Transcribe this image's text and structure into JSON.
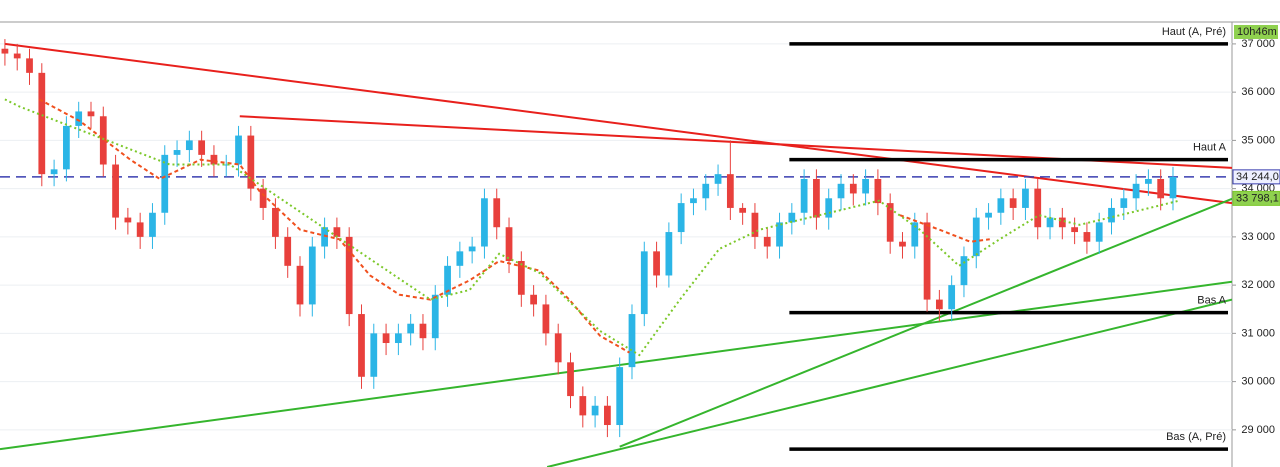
{
  "chart_data": {
    "type": "candlestick",
    "xlim": [
      -0.4,
      99.8
    ],
    "ylim": [
      28230,
      37910
    ],
    "yticks": [
      {
        "value": 29000,
        "label": "29 000"
      },
      {
        "value": 30000,
        "label": "30 000"
      },
      {
        "value": 31000,
        "label": "31 000"
      },
      {
        "value": 32000,
        "label": "32 000"
      },
      {
        "value": 33000,
        "label": "33 000"
      },
      {
        "value": 34000,
        "label": "34 000"
      },
      {
        "value": 35000,
        "label": "35 000"
      },
      {
        "value": 36000,
        "label": "36 000"
      },
      {
        "value": 37000,
        "label": "37 000"
      }
    ],
    "grid": true,
    "up_color": "#2bb5e6",
    "down_color": "#e8403c",
    "candles": [
      [
        36900,
        37100,
        36550,
        36800
      ],
      [
        36800,
        37000,
        36450,
        36700
      ],
      [
        36700,
        36900,
        36150,
        36400
      ],
      [
        36400,
        36600,
        34050,
        34300
      ],
      [
        34300,
        34600,
        34050,
        34400
      ],
      [
        34400,
        35500,
        34150,
        35300
      ],
      [
        35300,
        35800,
        35050,
        35600
      ],
      [
        35600,
        35800,
        35250,
        35500
      ],
      [
        35500,
        35700,
        34250,
        34500
      ],
      [
        34500,
        34700,
        33150,
        33400
      ],
      [
        33400,
        33600,
        33050,
        33300
      ],
      [
        33300,
        33500,
        32750,
        33000
      ],
      [
        33000,
        33700,
        32750,
        33500
      ],
      [
        33500,
        34900,
        33250,
        34700
      ],
      [
        34700,
        35000,
        34450,
        34800
      ],
      [
        34800,
        35200,
        34550,
        35000
      ],
      [
        35000,
        35200,
        34450,
        34700
      ],
      [
        34700,
        34900,
        34250,
        34500
      ],
      [
        34500,
        34700,
        34250,
        34500
      ],
      [
        34500,
        35300,
        34250,
        35100
      ],
      [
        35100,
        35300,
        33750,
        34000
      ],
      [
        34000,
        34200,
        33350,
        33600
      ],
      [
        33600,
        33800,
        32750,
        33000
      ],
      [
        33000,
        33200,
        32150,
        32400
      ],
      [
        32400,
        32600,
        31350,
        31600
      ],
      [
        31600,
        33000,
        31350,
        32800
      ],
      [
        32800,
        33400,
        32550,
        33200
      ],
      [
        33200,
        33400,
        32750,
        33000
      ],
      [
        33000,
        33200,
        31150,
        31400
      ],
      [
        31400,
        31600,
        29850,
        30100
      ],
      [
        30100,
        31200,
        29850,
        31000
      ],
      [
        31000,
        31200,
        30550,
        30800
      ],
      [
        30800,
        31200,
        30550,
        31000
      ],
      [
        31000,
        31400,
        30750,
        31200
      ],
      [
        31200,
        31400,
        30650,
        30900
      ],
      [
        30900,
        32000,
        30650,
        31800
      ],
      [
        31800,
        32600,
        31550,
        32400
      ],
      [
        32400,
        32900,
        32150,
        32700
      ],
      [
        32700,
        33000,
        32450,
        32800
      ],
      [
        32800,
        34000,
        32550,
        33800
      ],
      [
        33800,
        34000,
        32950,
        33200
      ],
      [
        33200,
        33400,
        32250,
        32500
      ],
      [
        32500,
        32700,
        31550,
        31800
      ],
      [
        31800,
        32000,
        31350,
        31600
      ],
      [
        31600,
        31800,
        30750,
        31000
      ],
      [
        31000,
        31200,
        30150,
        30400
      ],
      [
        30400,
        30600,
        29450,
        29700
      ],
      [
        29700,
        29900,
        29050,
        29300
      ],
      [
        29300,
        29700,
        29050,
        29500
      ],
      [
        29500,
        29700,
        28850,
        29100
      ],
      [
        29100,
        30500,
        28850,
        30300
      ],
      [
        30300,
        31600,
        30050,
        31400
      ],
      [
        31400,
        32900,
        31150,
        32700
      ],
      [
        32700,
        32900,
        31950,
        32200
      ],
      [
        32200,
        33300,
        31950,
        33100
      ],
      [
        33100,
        33900,
        32850,
        33700
      ],
      [
        33700,
        34000,
        33450,
        33800
      ],
      [
        33800,
        34300,
        33550,
        34100
      ],
      [
        34100,
        34500,
        33850,
        34300
      ],
      [
        34300,
        35000,
        33350,
        33600
      ],
      [
        33600,
        33700,
        33250,
        33500
      ],
      [
        33500,
        33700,
        32750,
        33000
      ],
      [
        33000,
        33200,
        32550,
        32800
      ],
      [
        32800,
        33500,
        32550,
        33300
      ],
      [
        33300,
        33700,
        33050,
        33500
      ],
      [
        33500,
        34400,
        33250,
        34200
      ],
      [
        34200,
        34400,
        33150,
        33400
      ],
      [
        33400,
        34000,
        33150,
        33800
      ],
      [
        33800,
        34300,
        33550,
        34100
      ],
      [
        34100,
        34300,
        33650,
        33900
      ],
      [
        33900,
        34400,
        33650,
        34200
      ],
      [
        34200,
        34400,
        33450,
        33700
      ],
      [
        33700,
        33900,
        32650,
        32900
      ],
      [
        32900,
        33100,
        32550,
        32800
      ],
      [
        32800,
        33500,
        32550,
        33300
      ],
      [
        33300,
        33500,
        31450,
        31700
      ],
      [
        31700,
        31900,
        31250,
        31500
      ],
      [
        31500,
        32200,
        31250,
        32000
      ],
      [
        32000,
        32800,
        31750,
        32600
      ],
      [
        32600,
        33600,
        32350,
        33400
      ],
      [
        33400,
        33700,
        33150,
        33500
      ],
      [
        33500,
        34000,
        33250,
        33800
      ],
      [
        33800,
        34000,
        33350,
        33600
      ],
      [
        33600,
        34200,
        33350,
        34000
      ],
      [
        34000,
        34200,
        32950,
        33200
      ],
      [
        33200,
        33600,
        32950,
        33400
      ],
      [
        33400,
        33600,
        32950,
        33200
      ],
      [
        33200,
        33400,
        32850,
        33100
      ],
      [
        33100,
        33300,
        32650,
        32900
      ],
      [
        32900,
        33500,
        32650,
        33300
      ],
      [
        33300,
        33800,
        33050,
        33600
      ],
      [
        33600,
        34000,
        33350,
        33800
      ],
      [
        33800,
        34300,
        33550,
        34100
      ],
      [
        34100,
        34400,
        33850,
        34200
      ],
      [
        34200,
        34400,
        33550,
        33800
      ],
      [
        33800,
        34450,
        33550,
        34244
      ]
    ],
    "moving_averages": [
      {
        "color": "#f0501e",
        "dash": "4 3",
        "x": [
          2.8,
          6.1,
          10.2,
          12.6,
          15.9,
          19.1,
          20.7,
          24,
          27.2,
          29.7,
          32.1,
          34.6,
          37.8,
          40.2,
          43.5,
          45.9,
          48.4,
          50.8,
          null,
          72.8,
          76,
          78.5,
          80.1
        ],
        "values": [
          35850,
          35400,
          34600,
          34200,
          34600,
          34500,
          33950,
          33150,
          32950,
          32200,
          31800,
          31700,
          32100,
          32500,
          32300,
          31700,
          30950,
          30600,
          null,
          33450,
          33150,
          32900,
          32950
        ]
      },
      {
        "color": "#7cc82a",
        "dash": "2 3",
        "x": [
          0,
          1.2,
          13.4,
          18.3,
          34.6,
          37.8,
          40.2,
          43.5,
          48.4,
          51.6,
          54.9,
          58.1,
          61.4,
          64.6,
          67.9,
          71.1,
          74.4,
          77.6,
          80.9,
          84.1,
          87.4,
          90.7,
          93.9,
          95.5
        ],
        "values": [
          35850,
          35700,
          34500,
          34500,
          31700,
          31900,
          32650,
          32250,
          31050,
          30550,
          31700,
          32750,
          33150,
          33350,
          33550,
          33750,
          33150,
          32400,
          32950,
          33450,
          33250,
          33450,
          33650,
          33750
        ]
      }
    ],
    "trendlines": [
      {
        "color": "#e8201c",
        "x": [
          0,
          99.8
        ],
        "values": [
          37000,
          33700
        ]
      },
      {
        "color": "#e8201c",
        "x": [
          19.1,
          99.8
        ],
        "values": [
          35500,
          34430
        ]
      },
      {
        "color": "#35b52d",
        "x": [
          -0.4,
          99.8
        ],
        "values": [
          28600,
          32070
        ]
      },
      {
        "color": "#35b52d",
        "x": [
          50,
          99.8
        ],
        "values": [
          28650,
          33790
        ]
      },
      {
        "color": "#35b52d",
        "x": [
          44.1,
          99.8
        ],
        "values": [
          28230,
          31700
        ]
      }
    ],
    "levels": [
      {
        "label": "Haut (A, Pré)",
        "value": 37000,
        "from": 63.8
      },
      {
        "label": "Haut A",
        "value": 34600,
        "from": 63.8
      },
      {
        "label": "Bas A",
        "value": 31430,
        "from": 63.8
      },
      {
        "label": "Bas (A, Pré)",
        "value": 28600,
        "from": 63.8
      }
    ],
    "last_price": {
      "value": 34244,
      "label": "34 244,0",
      "color": "#3a3fb0"
    },
    "ma_price": {
      "value": 33798.1,
      "label": "33 798,1",
      "color": "#7cc82a"
    },
    "timer": "10h46m"
  }
}
